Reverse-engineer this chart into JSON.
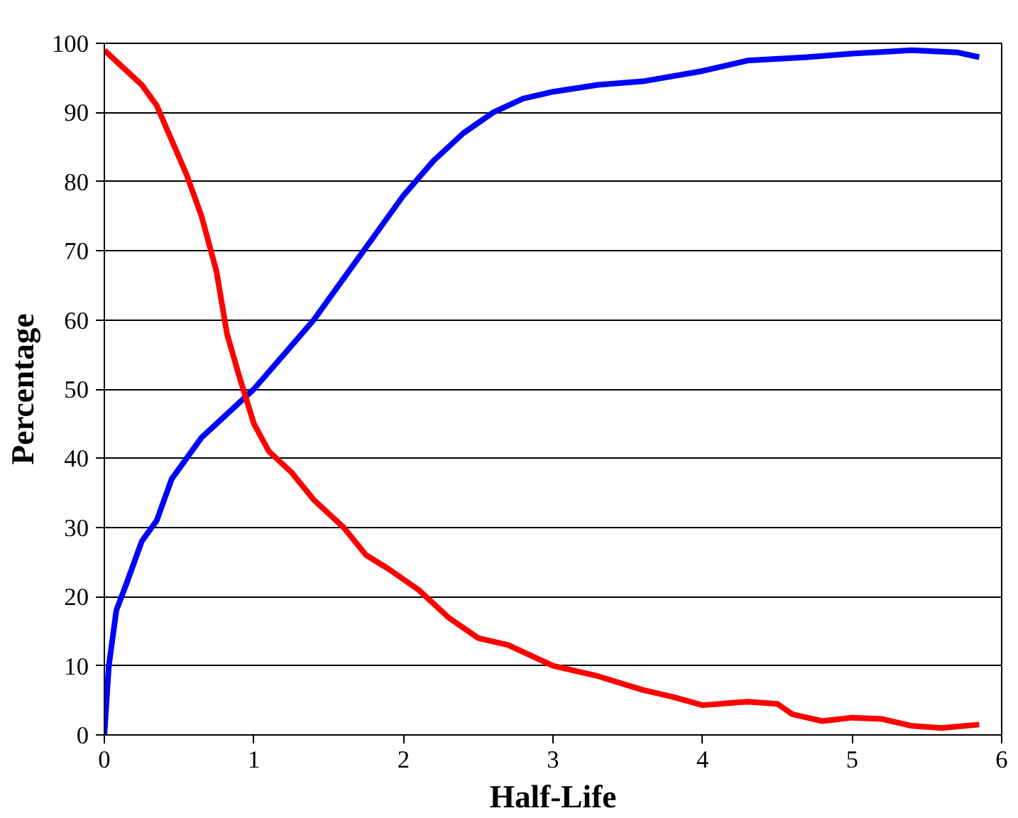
{
  "chart_data": {
    "type": "line",
    "xlabel": "Half-Life",
    "ylabel": "Percentage",
    "xlim": [
      0,
      6
    ],
    "xticks": [
      0,
      1,
      2,
      3,
      4,
      5,
      6
    ],
    "ylim": [
      0,
      100
    ],
    "yticks": [
      0,
      10,
      20,
      30,
      40,
      50,
      60,
      70,
      80,
      90,
      100
    ],
    "grid": "y",
    "marker": "none",
    "line_style": "solid",
    "series": [
      {
        "color": "#0000ff",
        "x": [
          0,
          0.03,
          0.08,
          0.15,
          0.25,
          0.35,
          0.45,
          0.55,
          0.65,
          0.75,
          0.85,
          1.0,
          1.2,
          1.4,
          1.6,
          1.8,
          2.0,
          2.2,
          2.4,
          2.6,
          2.8,
          3.0,
          3.3,
          3.6,
          4.0,
          4.3,
          4.7,
          5.0,
          5.4,
          5.7,
          5.85
        ],
        "values": [
          0,
          10,
          18,
          22,
          28,
          31,
          37,
          40,
          43,
          45,
          47,
          50,
          55,
          60,
          66,
          72,
          78,
          83,
          87,
          90,
          92,
          93,
          94,
          94.5,
          96,
          97.5,
          98,
          98.5,
          99,
          98.7,
          98
        ]
      },
      {
        "color": "#ff0000",
        "x": [
          0,
          0.1,
          0.25,
          0.35,
          0.45,
          0.55,
          0.65,
          0.75,
          0.82,
          0.9,
          1.0,
          1.1,
          1.25,
          1.4,
          1.6,
          1.75,
          1.9,
          2.1,
          2.3,
          2.5,
          2.7,
          2.9,
          3.0,
          3.3,
          3.6,
          3.8,
          4.0,
          4.3,
          4.5,
          4.6,
          4.8,
          5.0,
          5.2,
          5.4,
          5.6,
          5.85
        ],
        "values": [
          99,
          97,
          94,
          91,
          86,
          81,
          75,
          67,
          58,
          52,
          45,
          41,
          38,
          34,
          30,
          26,
          24,
          21,
          17,
          14,
          13,
          11,
          10,
          8.5,
          6.5,
          5.5,
          4.3,
          4.8,
          4.5,
          3,
          2,
          2.5,
          2.3,
          1.3,
          1,
          1.5
        ]
      }
    ]
  }
}
